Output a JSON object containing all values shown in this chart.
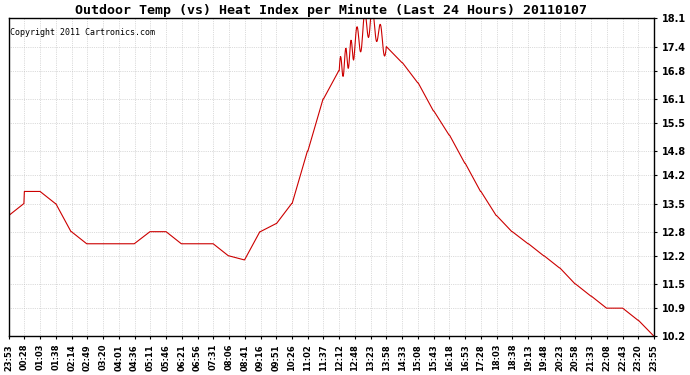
{
  "title": "Outdoor Temp (vs) Heat Index per Minute (Last 24 Hours) 20110107",
  "copyright": "Copyright 2011 Cartronics.com",
  "line_color": "#cc0000",
  "background_color": "#ffffff",
  "grid_color": "#aaaaaa",
  "yticks": [
    10.2,
    10.9,
    11.5,
    12.2,
    12.8,
    13.5,
    14.2,
    14.8,
    15.5,
    16.1,
    16.8,
    17.4,
    18.1
  ],
  "ylim": [
    10.2,
    18.1
  ],
  "xtick_labels": [
    "23:53",
    "00:28",
    "01:03",
    "01:38",
    "02:14",
    "02:49",
    "03:20",
    "04:01",
    "04:36",
    "05:11",
    "05:46",
    "06:21",
    "06:56",
    "07:31",
    "08:06",
    "08:41",
    "09:16",
    "09:51",
    "10:26",
    "11:02",
    "11:37",
    "12:12",
    "12:48",
    "13:23",
    "13:58",
    "14:33",
    "15:08",
    "15:43",
    "16:18",
    "16:53",
    "17:28",
    "18:03",
    "18:38",
    "19:13",
    "19:48",
    "20:23",
    "20:58",
    "21:33",
    "22:08",
    "22:43",
    "23:20",
    "23:55"
  ],
  "n_points": 1440
}
